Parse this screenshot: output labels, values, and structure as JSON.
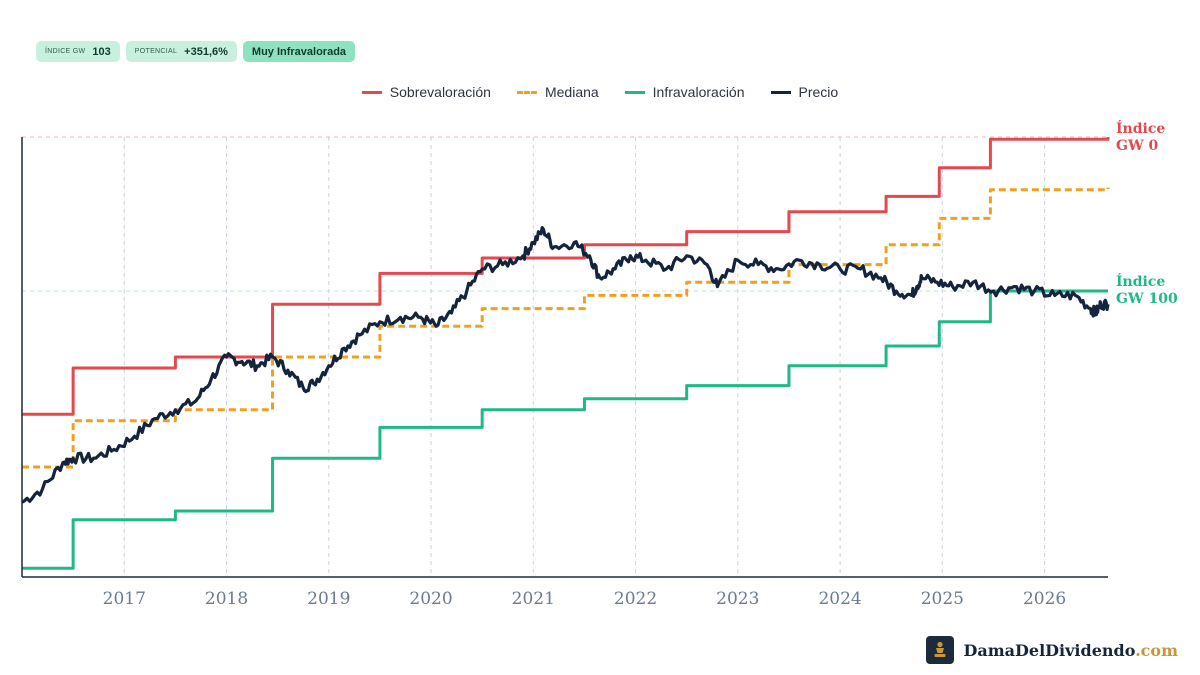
{
  "badges": {
    "index": {
      "label": "ÍNDICE GW",
      "value": "103"
    },
    "potential": {
      "label": "POTENCIAL",
      "value": "+351,6%"
    },
    "rating": {
      "value": "Muy Infravalorada"
    }
  },
  "legend": {
    "over": "Sobrevaloración",
    "median": "Mediana",
    "under": "Infravaloración",
    "price": "Precio"
  },
  "right_labels": {
    "top": [
      "Índice",
      "GW 0"
    ],
    "bottom": [
      "Índice",
      "GW 100"
    ]
  },
  "brand": {
    "name": "DamaDelDividendo",
    "domain": ".com"
  },
  "colors": {
    "over": "#e5484d",
    "median": "#f0a020",
    "under": "#1fb985",
    "price": "#15243d",
    "grid": "#c9d3e0",
    "axis_text": "#6b7b92"
  },
  "chart_data": {
    "type": "line",
    "title": "",
    "xlabel": "",
    "ylabel": "",
    "x_ticks": [
      "2017",
      "2018",
      "2019",
      "2020",
      "2021",
      "2022",
      "2023",
      "2024",
      "2025",
      "2026"
    ],
    "xlim": [
      2016.0,
      2026.62
    ],
    "ylim": [
      0,
      100
    ],
    "grid": true,
    "legend_position": "top-center",
    "series": [
      {
        "name": "Sobrevaloración",
        "kind": "step",
        "style": "solid",
        "color": "#e5484d",
        "x": [
          2016.0,
          2016.5,
          2017.5,
          2018.45,
          2019.5,
          2020.5,
          2021.5,
          2022.5,
          2023.5,
          2024.45,
          2024.97,
          2025.47,
          2026.62
        ],
        "y": [
          37,
          47.5,
          50,
          62,
          69,
          72.5,
          75.5,
          78.5,
          83,
          86.5,
          93,
          99.5,
          100
        ]
      },
      {
        "name": "Mediana",
        "kind": "step",
        "style": "dashed",
        "color": "#f0a020",
        "x": [
          2016.0,
          2016.5,
          2017.5,
          2018.45,
          2019.5,
          2020.5,
          2021.5,
          2022.5,
          2023.5,
          2024.45,
          2024.97,
          2025.47,
          2026.62
        ],
        "y": [
          25,
          35.5,
          38,
          50,
          57,
          61,
          64,
          67,
          71,
          75.5,
          81.5,
          88,
          88.5
        ]
      },
      {
        "name": "Infravaloración",
        "kind": "step",
        "style": "solid",
        "color": "#1fb985",
        "x": [
          2016.0,
          2016.5,
          2017.5,
          2018.45,
          2019.5,
          2020.5,
          2021.5,
          2022.5,
          2023.5,
          2024.45,
          2024.97,
          2025.47,
          2026.62
        ],
        "y": [
          2,
          13,
          15,
          27,
          34,
          38,
          40.5,
          43.5,
          48,
          52.5,
          58,
          65,
          65
        ]
      },
      {
        "name": "Precio",
        "kind": "line",
        "style": "solid",
        "color": "#15243d",
        "x": [
          2016.0,
          2016.2,
          2016.4,
          2016.5,
          2016.7,
          2016.9,
          2017.1,
          2017.3,
          2017.5,
          2017.7,
          2017.85,
          2018.0,
          2018.15,
          2018.3,
          2018.45,
          2018.6,
          2018.75,
          2018.85,
          2019.0,
          2019.15,
          2019.3,
          2019.5,
          2019.7,
          2019.9,
          2020.05,
          2020.2,
          2020.35,
          2020.5,
          2020.7,
          2020.9,
          2021.0,
          2021.1,
          2021.2,
          2021.4,
          2021.55,
          2021.65,
          2021.8,
          2021.95,
          2022.1,
          2022.3,
          2022.5,
          2022.7,
          2022.8,
          2023.0,
          2023.2,
          2023.4,
          2023.6,
          2023.8,
          2024.0,
          2024.2,
          2024.4,
          2024.55,
          2024.7,
          2024.75,
          2024.8,
          2024.95,
          2025.1,
          2025.3,
          2025.5,
          2025.7,
          2025.9,
          2026.1,
          2026.3,
          2026.45,
          2026.5,
          2026.55,
          2026.62
        ],
        "y": [
          17,
          20,
          26,
          27,
          27,
          29,
          32,
          36,
          38,
          40,
          45,
          50,
          49,
          48,
          50,
          47,
          43,
          44,
          48,
          52,
          55,
          58,
          59,
          59,
          57,
          60,
          65,
          70,
          71,
          73,
          76,
          79,
          75,
          76,
          73,
          68,
          70,
          73,
          72,
          70,
          73,
          71,
          66,
          72,
          71,
          70,
          72,
          71,
          70,
          70,
          68,
          65,
          64,
          66,
          68,
          67,
          66,
          67,
          65,
          66,
          65,
          64,
          64,
          61,
          60,
          62,
          62
        ]
      }
    ]
  }
}
